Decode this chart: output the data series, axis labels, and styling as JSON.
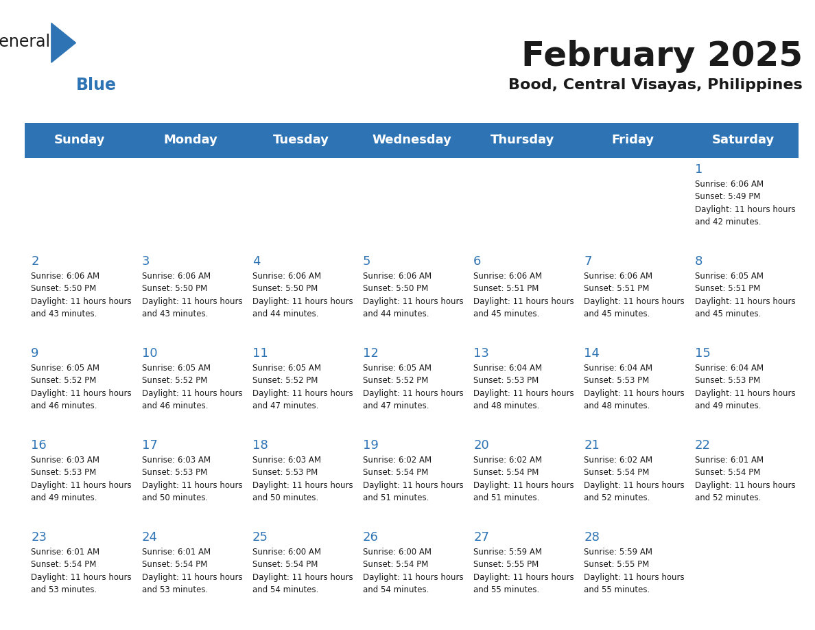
{
  "title": "February 2025",
  "subtitle": "Bood, Central Visayas, Philippines",
  "header_bg": "#2E74B5",
  "header_text_color": "#FFFFFF",
  "cell_bg_odd": "#F2F2F2",
  "cell_bg_even": "#FFFFFF",
  "border_color": "#2E74B5",
  "day_headers": [
    "Sunday",
    "Monday",
    "Tuesday",
    "Wednesday",
    "Thursday",
    "Friday",
    "Saturday"
  ],
  "calendar_data": [
    [
      {
        "day": "",
        "sunrise": "",
        "sunset": "",
        "daylight": ""
      },
      {
        "day": "",
        "sunrise": "",
        "sunset": "",
        "daylight": ""
      },
      {
        "day": "",
        "sunrise": "",
        "sunset": "",
        "daylight": ""
      },
      {
        "day": "",
        "sunrise": "",
        "sunset": "",
        "daylight": ""
      },
      {
        "day": "",
        "sunrise": "",
        "sunset": "",
        "daylight": ""
      },
      {
        "day": "",
        "sunrise": "",
        "sunset": "",
        "daylight": ""
      },
      {
        "day": "1",
        "sunrise": "6:06 AM",
        "sunset": "5:49 PM",
        "daylight": "11 hours and 42 minutes."
      }
    ],
    [
      {
        "day": "2",
        "sunrise": "6:06 AM",
        "sunset": "5:50 PM",
        "daylight": "11 hours and 43 minutes."
      },
      {
        "day": "3",
        "sunrise": "6:06 AM",
        "sunset": "5:50 PM",
        "daylight": "11 hours and 43 minutes."
      },
      {
        "day": "4",
        "sunrise": "6:06 AM",
        "sunset": "5:50 PM",
        "daylight": "11 hours and 44 minutes."
      },
      {
        "day": "5",
        "sunrise": "6:06 AM",
        "sunset": "5:50 PM",
        "daylight": "11 hours and 44 minutes."
      },
      {
        "day": "6",
        "sunrise": "6:06 AM",
        "sunset": "5:51 PM",
        "daylight": "11 hours and 45 minutes."
      },
      {
        "day": "7",
        "sunrise": "6:06 AM",
        "sunset": "5:51 PM",
        "daylight": "11 hours and 45 minutes."
      },
      {
        "day": "8",
        "sunrise": "6:05 AM",
        "sunset": "5:51 PM",
        "daylight": "11 hours and 45 minutes."
      }
    ],
    [
      {
        "day": "9",
        "sunrise": "6:05 AM",
        "sunset": "5:52 PM",
        "daylight": "11 hours and 46 minutes."
      },
      {
        "day": "10",
        "sunrise": "6:05 AM",
        "sunset": "5:52 PM",
        "daylight": "11 hours and 46 minutes."
      },
      {
        "day": "11",
        "sunrise": "6:05 AM",
        "sunset": "5:52 PM",
        "daylight": "11 hours and 47 minutes."
      },
      {
        "day": "12",
        "sunrise": "6:05 AM",
        "sunset": "5:52 PM",
        "daylight": "11 hours and 47 minutes."
      },
      {
        "day": "13",
        "sunrise": "6:04 AM",
        "sunset": "5:53 PM",
        "daylight": "11 hours and 48 minutes."
      },
      {
        "day": "14",
        "sunrise": "6:04 AM",
        "sunset": "5:53 PM",
        "daylight": "11 hours and 48 minutes."
      },
      {
        "day": "15",
        "sunrise": "6:04 AM",
        "sunset": "5:53 PM",
        "daylight": "11 hours and 49 minutes."
      }
    ],
    [
      {
        "day": "16",
        "sunrise": "6:03 AM",
        "sunset": "5:53 PM",
        "daylight": "11 hours and 49 minutes."
      },
      {
        "day": "17",
        "sunrise": "6:03 AM",
        "sunset": "5:53 PM",
        "daylight": "11 hours and 50 minutes."
      },
      {
        "day": "18",
        "sunrise": "6:03 AM",
        "sunset": "5:53 PM",
        "daylight": "11 hours and 50 minutes."
      },
      {
        "day": "19",
        "sunrise": "6:02 AM",
        "sunset": "5:54 PM",
        "daylight": "11 hours and 51 minutes."
      },
      {
        "day": "20",
        "sunrise": "6:02 AM",
        "sunset": "5:54 PM",
        "daylight": "11 hours and 51 minutes."
      },
      {
        "day": "21",
        "sunrise": "6:02 AM",
        "sunset": "5:54 PM",
        "daylight": "11 hours and 52 minutes."
      },
      {
        "day": "22",
        "sunrise": "6:01 AM",
        "sunset": "5:54 PM",
        "daylight": "11 hours and 52 minutes."
      }
    ],
    [
      {
        "day": "23",
        "sunrise": "6:01 AM",
        "sunset": "5:54 PM",
        "daylight": "11 hours and 53 minutes."
      },
      {
        "day": "24",
        "sunrise": "6:01 AM",
        "sunset": "5:54 PM",
        "daylight": "11 hours and 53 minutes."
      },
      {
        "day": "25",
        "sunrise": "6:00 AM",
        "sunset": "5:54 PM",
        "daylight": "11 hours and 54 minutes."
      },
      {
        "day": "26",
        "sunrise": "6:00 AM",
        "sunset": "5:54 PM",
        "daylight": "11 hours and 54 minutes."
      },
      {
        "day": "27",
        "sunrise": "5:59 AM",
        "sunset": "5:55 PM",
        "daylight": "11 hours and 55 minutes."
      },
      {
        "day": "28",
        "sunrise": "5:59 AM",
        "sunset": "5:55 PM",
        "daylight": "11 hours and 55 minutes."
      },
      {
        "day": "",
        "sunrise": "",
        "sunset": "",
        "daylight": ""
      }
    ]
  ],
  "logo_color_general": "#1a1a1a",
  "logo_color_blue": "#2E74B5",
  "logo_triangle_color": "#2E74B5"
}
